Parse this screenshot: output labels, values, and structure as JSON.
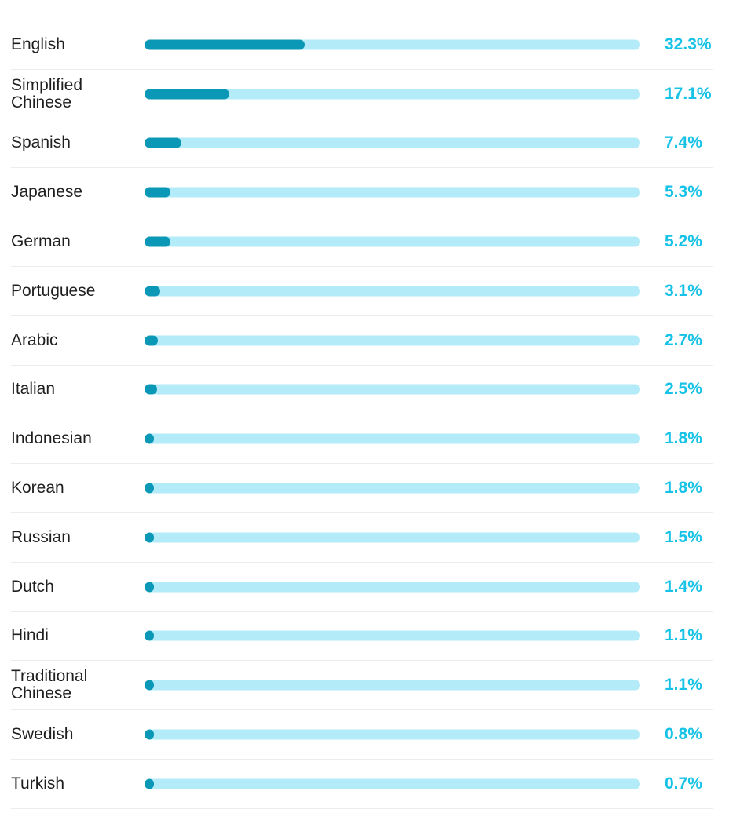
{
  "colors": {
    "track": "#b3ebf8",
    "fill": "#0b98b6",
    "value_text": "#16c2e6",
    "label_text": "#1f1f1f",
    "divider": "#ececec"
  },
  "chart_data": {
    "type": "bar",
    "orientation": "horizontal",
    "title": "",
    "xlabel": "",
    "ylabel": "",
    "xlim": [
      0,
      100
    ],
    "grid": false,
    "legend": "none",
    "categories": [
      "English",
      "Simplified\nChinese",
      "Spanish",
      "Japanese",
      "German",
      "Portuguese",
      "Arabic",
      "Italian",
      "Indonesian",
      "Korean",
      "Russian",
      "Dutch",
      "Hindi",
      "Traditional\nChinese",
      "Swedish",
      "Turkish"
    ],
    "values": [
      32.3,
      17.1,
      7.4,
      5.3,
      5.2,
      3.1,
      2.7,
      2.5,
      1.8,
      1.8,
      1.5,
      1.4,
      1.1,
      1.1,
      0.8,
      0.7
    ],
    "value_labels": [
      "32.3%",
      "17.1%",
      "7.4%",
      "5.3%",
      "5.2%",
      "3.1%",
      "2.7%",
      "2.5%",
      "1.8%",
      "1.8%",
      "1.5%",
      "1.4%",
      "1.1%",
      "1.1%",
      "0.8%",
      "0.7%"
    ]
  }
}
